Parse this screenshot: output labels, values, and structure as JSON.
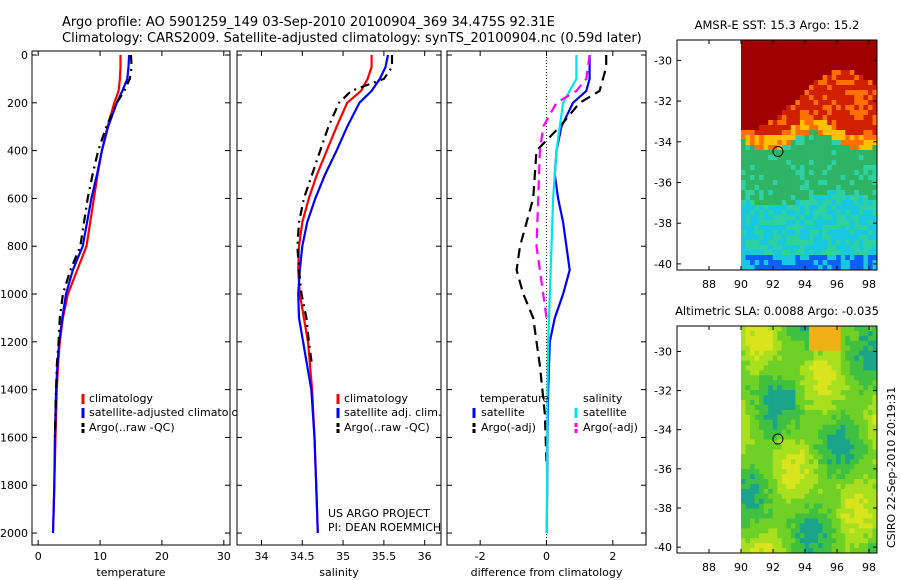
{
  "header": {
    "line1": "Argo profile: AO 5901259_149 03-Sep-2010 20100904_369 34.475S 92.31E",
    "line2": "Climatology: CARS2009. Satellite-adjusted climatology: synTS_20100904.nc (0.59d later)"
  },
  "footer": {
    "project": "US ARGO PROJECT",
    "pi": "PI: DEAN ROEMMICH",
    "stamp": "CSIRO 22-Sep-2010 20:19:31"
  },
  "colors": {
    "red": "#ff0000",
    "blue": "#0000ff",
    "black": "#000000",
    "cyan": "#00e5e5",
    "magenta": "#ff00ff"
  },
  "chart_data": [
    {
      "id": "temperature",
      "type": "line",
      "xlabel": "temperature",
      "xlim": [
        -1,
        31
      ],
      "ylim": [
        0,
        2050
      ],
      "xticks": [
        0,
        10,
        20,
        30
      ],
      "yticks": [
        0,
        200,
        400,
        600,
        800,
        1000,
        1200,
        1400,
        1600,
        1800,
        2000
      ],
      "legend": [
        "climatology",
        "satellite-adjusted climatology",
        "Argo(..raw -QC)"
      ],
      "series": [
        {
          "name": "climatology",
          "color": "red",
          "dash": "",
          "x": [
            13.3,
            13.3,
            13.2,
            13.0,
            12.3,
            11.2,
            10.3,
            9.6,
            9.0,
            7.8,
            6.3,
            4.8,
            4.0,
            3.5,
            3.2,
            3.0,
            2.8,
            2.6,
            2.5,
            2.4
          ],
          "y": [
            0,
            50,
            100,
            150,
            200,
            300,
            400,
            500,
            600,
            800,
            900,
            1000,
            1100,
            1200,
            1300,
            1400,
            1600,
            1800,
            1900,
            2000
          ]
        },
        {
          "name": "satellite-adjusted climatology",
          "color": "blue",
          "dash": "",
          "x": [
            14.7,
            14.6,
            14.4,
            13.6,
            12.7,
            11.3,
            10.3,
            9.5,
            8.6,
            7.2,
            5.6,
            4.5,
            3.9,
            3.4,
            3.1,
            2.9,
            2.7,
            2.6,
            2.5,
            2.4
          ],
          "y": [
            0,
            50,
            100,
            150,
            200,
            300,
            400,
            500,
            600,
            800,
            900,
            1000,
            1100,
            1200,
            1300,
            1400,
            1600,
            1800,
            1900,
            2000
          ]
        },
        {
          "name": "Argo(..raw -QC)",
          "color": "black",
          "dash": "9,5,2,5",
          "x": [
            15.0,
            15.1,
            14.8,
            13.9,
            12.7,
            11.0,
            9.7,
            8.8,
            8.0,
            6.8,
            5.2,
            4.0,
            3.5,
            3.3,
            3.0,
            2.9,
            2.7
          ],
          "y": [
            0,
            50,
            100,
            150,
            200,
            300,
            400,
            500,
            600,
            800,
            900,
            1000,
            1100,
            1200,
            1300,
            1400,
            1600
          ]
        }
      ]
    },
    {
      "id": "salinity",
      "type": "line",
      "xlabel": "salinity",
      "xlim": [
        33.7,
        36.2
      ],
      "ylim": [
        0,
        2050
      ],
      "xticks": [
        34,
        34.5,
        35,
        35.5,
        36
      ],
      "legend": [
        "climatology",
        "satellite adj. clim.",
        "Argo(..raw -QC)"
      ],
      "series": [
        {
          "name": "climatology",
          "color": "red",
          "dash": "",
          "x": [
            35.35,
            35.35,
            35.3,
            35.22,
            35.05,
            34.92,
            34.8,
            34.68,
            34.58,
            34.5,
            34.46,
            34.45,
            34.47,
            34.52,
            34.57,
            34.62,
            34.65,
            34.67,
            34.69
          ],
          "y": [
            0,
            50,
            100,
            150,
            200,
            300,
            400,
            500,
            600,
            700,
            800,
            900,
            1000,
            1100,
            1200,
            1400,
            1600,
            1800,
            2000
          ]
        },
        {
          "name": "satellite adj. clim.",
          "color": "blue",
          "dash": "",
          "x": [
            35.55,
            35.52,
            35.45,
            35.35,
            35.2,
            35.05,
            34.92,
            34.78,
            34.66,
            34.56,
            34.5,
            34.47,
            34.45,
            34.46,
            34.51,
            34.56,
            34.61,
            34.65,
            34.67,
            34.69
          ],
          "y": [
            0,
            50,
            100,
            150,
            200,
            300,
            400,
            500,
            600,
            700,
            800,
            900,
            1000,
            1100,
            1200,
            1300,
            1400,
            1600,
            1800,
            2000
          ]
        },
        {
          "name": "Argo(..raw -QC)",
          "color": "black",
          "dash": "9,5,2,5",
          "x": [
            35.6,
            35.6,
            35.5,
            35.1,
            34.95,
            34.82,
            34.72,
            34.62,
            34.52,
            34.46,
            34.44,
            34.46,
            34.49,
            34.55,
            34.58,
            34.62
          ],
          "y": [
            0,
            50,
            100,
            150,
            200,
            300,
            400,
            500,
            600,
            700,
            800,
            900,
            1000,
            1100,
            1200,
            1300
          ]
        }
      ]
    },
    {
      "id": "difference",
      "type": "line",
      "xlabel": "difference from climatology",
      "xlim": [
        -3,
        3
      ],
      "ylim": [
        0,
        2050
      ],
      "xticks": [
        -2,
        0,
        2
      ],
      "legend_titles": [
        "temperature",
        "salinity"
      ],
      "legend": [
        "satellite",
        "Argo(-adj)",
        "satellite",
        "Argo(-adj)"
      ],
      "series": [
        {
          "name": "temperature satellite",
          "color": "blue",
          "dash": "",
          "x": [
            1.3,
            1.3,
            1.2,
            0.8,
            0.45,
            0.3,
            0.25,
            0.35,
            0.5,
            0.6,
            0.7,
            0.5,
            0.25,
            0.1,
            0.05,
            0.03,
            0.02,
            0.01
          ],
          "y": [
            0,
            100,
            150,
            200,
            300,
            400,
            500,
            600,
            700,
            800,
            900,
            1000,
            1100,
            1200,
            1400,
            1600,
            1800,
            2000
          ]
        },
        {
          "name": "temperature Argo(-adj)",
          "color": "black",
          "dash": "10,6",
          "x": [
            1.8,
            1.8,
            1.6,
            1.0,
            0.4,
            -0.3,
            -0.4,
            -0.8,
            -0.9,
            -0.7,
            -0.4,
            -0.2,
            -0.05,
            0.0
          ],
          "y": [
            0,
            50,
            150,
            200,
            300,
            400,
            600,
            800,
            900,
            1000,
            1100,
            1300,
            1500,
            1700
          ]
        },
        {
          "name": "salinity satellite",
          "color": "cyan",
          "dash": "",
          "x": [
            0.9,
            0.9,
            0.7,
            0.5,
            0.4,
            0.3,
            0.2,
            0.15,
            0.1,
            0.05,
            0.03,
            0.02,
            0.01
          ],
          "y": [
            0,
            100,
            150,
            200,
            300,
            400,
            600,
            800,
            1000,
            1200,
            1400,
            1700,
            2000
          ]
        },
        {
          "name": "salinity Argo(-adj)",
          "color": "magenta",
          "dash": "10,6",
          "x": [
            1.3,
            1.2,
            0.9,
            0.3,
            -0.1,
            -0.2,
            -0.25,
            -0.3,
            -0.2,
            -0.1,
            0.0
          ],
          "y": [
            0,
            100,
            150,
            200,
            300,
            400,
            600,
            800,
            900,
            1000,
            1100
          ]
        }
      ]
    },
    {
      "id": "sst-map",
      "type": "heatmap",
      "title": "AMSR-E SST: 15.3 Argo: 15.2",
      "xlim": [
        86,
        98.5
      ],
      "ylim": [
        -40.3,
        -29.0
      ],
      "xticks": [
        88,
        90,
        92,
        94,
        96,
        98
      ],
      "yticks": [
        -30,
        -32,
        -34,
        -36,
        -38,
        -40
      ],
      "data_xlim": [
        90,
        98.5
      ],
      "marker": {
        "lon": 92.31,
        "lat": -34.475
      },
      "palette": [
        "#0a5fff",
        "#18c8e0",
        "#2dd1a2",
        "#2fb466",
        "#ffc000",
        "#ff7000",
        "#d02000",
        "#a00000"
      ]
    },
    {
      "id": "sla-map",
      "type": "heatmap",
      "title": "Altimetric SLA: 0.0088 Argo: -0.035",
      "xlim": [
        86,
        98.5
      ],
      "ylim": [
        -40.3,
        -28.7
      ],
      "xticks": [
        88,
        90,
        92,
        94,
        96,
        98
      ],
      "yticks": [
        -30,
        -32,
        -34,
        -36,
        -38,
        -40
      ],
      "data_xlim": [
        90,
        98.5
      ],
      "marker": {
        "lon": 92.31,
        "lat": -34.475
      },
      "palette": [
        "#1aa58a",
        "#3fc040",
        "#6fd025",
        "#a8e020",
        "#d8e41c",
        "#f0b014"
      ]
    }
  ]
}
